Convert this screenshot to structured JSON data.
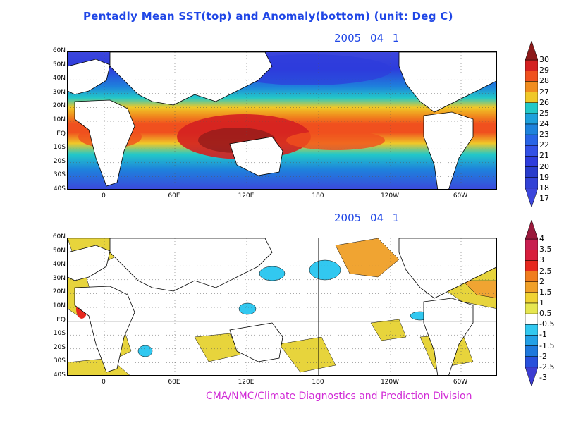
{
  "title": "Pentadly Mean SST(top) and Anomaly(bottom) (unit: Deg C)",
  "top_panel": {
    "date": "2005  04  1",
    "lat_labels": [
      "60N",
      "50N",
      "40N",
      "30N",
      "20N",
      "10N",
      "EQ",
      "10S",
      "20S",
      "30S",
      "40S"
    ],
    "lon_labels": [
      "0",
      "60E",
      "120E",
      "180",
      "120W",
      "60W"
    ],
    "colorbar_labels": [
      "30",
      "29",
      "28",
      "27",
      "26",
      "25",
      "24",
      "23",
      "22",
      "21",
      "20",
      "19",
      "18",
      "17"
    ],
    "colorbar_colors": [
      "#8c1a1a",
      "#d42020",
      "#f0501e",
      "#f08c1e",
      "#f0c828",
      "#23c8c8",
      "#1ea0dc",
      "#1e82dc",
      "#2864e6",
      "#3250e6",
      "#2d3cdc",
      "#283ccc",
      "#3242d6",
      "#3c46dc"
    ]
  },
  "bottom_panel": {
    "date": "2005  04  1",
    "lat_labels": [
      "60N",
      "50N",
      "40N",
      "30N",
      "20N",
      "10N",
      "EQ",
      "10S",
      "20S",
      "30S",
      "40S"
    ],
    "lon_labels": [
      "0",
      "60E",
      "120E",
      "180",
      "120W",
      "60W"
    ],
    "colorbar_labels": [
      "4",
      "3.5",
      "3",
      "2.5",
      "2",
      "1.5",
      "1",
      "0.5",
      "-0.5",
      "-1",
      "-1.5",
      "-2",
      "-2.5",
      "-3"
    ],
    "colorbar_colors": [
      "#9a1a3c",
      "#c81e50",
      "#d81e3c",
      "#e6281e",
      "#f07d1e",
      "#f0a028",
      "#f0d232",
      "#e6e650",
      "#ffffff",
      "#32c8f0",
      "#23a0e6",
      "#1e78dc",
      "#2850dc",
      "#3c3cd2"
    ]
  },
  "credit": "CMA/NMC/Climate Diagnostics and Prediction Division"
}
